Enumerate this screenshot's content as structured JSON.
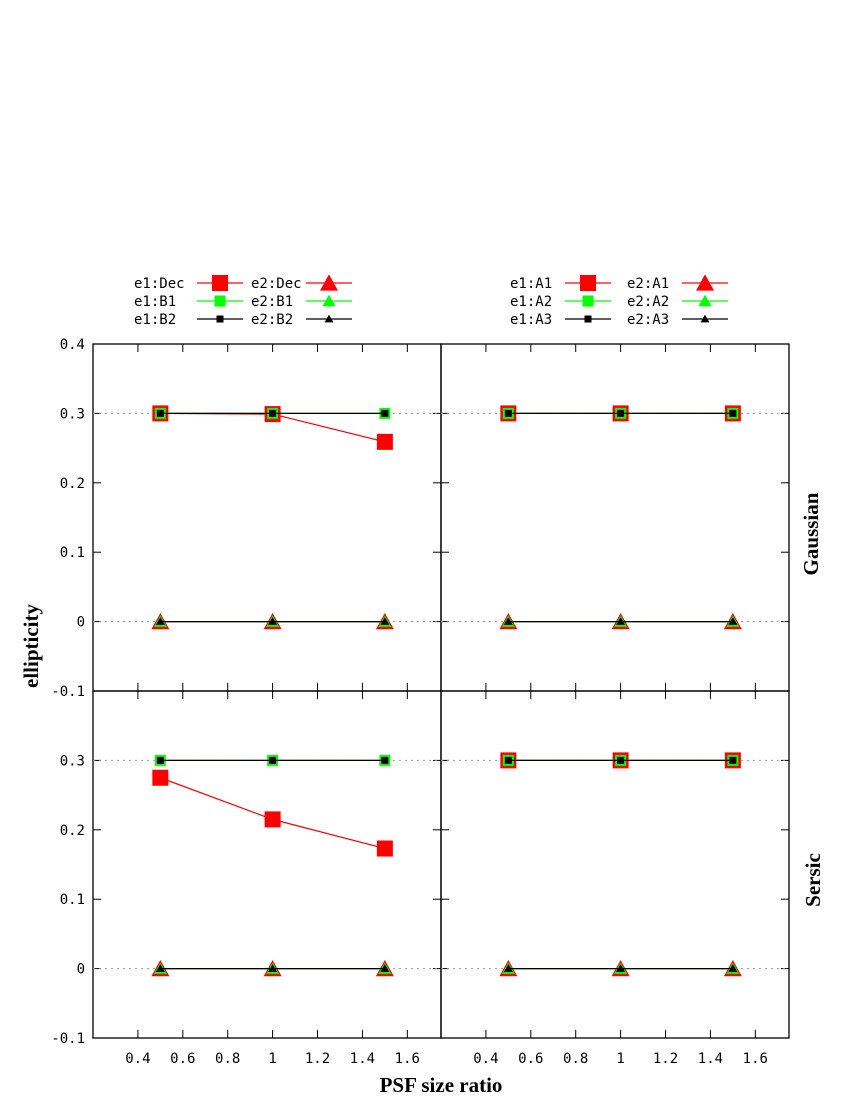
{
  "chart_data": {
    "type": "line",
    "xlabel": "PSF size ratio",
    "ylabel": "ellipticity",
    "xlim": [
      0.2,
      1.75
    ],
    "ylim": [
      -0.1,
      0.4
    ],
    "x_ticks": [
      "0.4",
      "0.6",
      "0.8",
      "1",
      "1.2",
      "1.4",
      "1.6"
    ],
    "y_ticks_top": [
      "-0.1",
      "0",
      "0.1",
      "0.2",
      "0.3",
      "0.4"
    ],
    "y_ticks_bottom": [
      "-0.1",
      "0",
      "0.1",
      "0.2",
      "0.3"
    ],
    "row_labels": [
      "Gaussian",
      "Sersic"
    ],
    "reference_lines": [
      0,
      0.3
    ],
    "grid": false,
    "panels": [
      {
        "row": "Gaussian",
        "column": "left",
        "x": [
          0.5,
          1.0,
          1.5
        ],
        "series": [
          {
            "name": "e1:Dec",
            "values": [
              0.3,
              0.299,
              0.259
            ]
          },
          {
            "name": "e1:B1",
            "values": [
              0.3,
              0.3,
              0.3
            ]
          },
          {
            "name": "e1:B2",
            "values": [
              0.3,
              0.3,
              0.3
            ]
          },
          {
            "name": "e2:Dec",
            "values": [
              0,
              0,
              0
            ]
          },
          {
            "name": "e2:B1",
            "values": [
              0,
              0,
              0
            ]
          },
          {
            "name": "e2:B2",
            "values": [
              0,
              0,
              0
            ]
          }
        ]
      },
      {
        "row": "Gaussian",
        "column": "right",
        "x": [
          0.5,
          1.0,
          1.5
        ],
        "series": [
          {
            "name": "e1:A1",
            "values": [
              0.3,
              0.3,
              0.3
            ]
          },
          {
            "name": "e1:A2",
            "values": [
              0.3,
              0.3,
              0.3
            ]
          },
          {
            "name": "e1:A3",
            "values": [
              0.3,
              0.3,
              0.3
            ]
          },
          {
            "name": "e2:A1",
            "values": [
              0,
              0,
              0
            ]
          },
          {
            "name": "e2:A2",
            "values": [
              0,
              0,
              0
            ]
          },
          {
            "name": "e2:A3",
            "values": [
              0,
              0,
              0
            ]
          }
        ]
      },
      {
        "row": "Sersic",
        "column": "left",
        "x": [
          0.5,
          1.0,
          1.5
        ],
        "series": [
          {
            "name": "e1:Dec",
            "values": [
              0.275,
              0.215,
              0.173
            ]
          },
          {
            "name": "e1:B1",
            "values": [
              0.3,
              0.3,
              0.3
            ]
          },
          {
            "name": "e1:B2",
            "values": [
              0.3,
              0.3,
              0.3
            ]
          },
          {
            "name": "e2:Dec",
            "values": [
              0,
              0,
              0
            ]
          },
          {
            "name": "e2:B1",
            "values": [
              0,
              0,
              0
            ]
          },
          {
            "name": "e2:B2",
            "values": [
              0,
              0,
              0
            ]
          }
        ]
      },
      {
        "row": "Sersic",
        "column": "right",
        "x": [
          0.5,
          1.0,
          1.5
        ],
        "series": [
          {
            "name": "e1:A1",
            "values": [
              0.3,
              0.3,
              0.3
            ]
          },
          {
            "name": "e1:A2",
            "values": [
              0.3,
              0.3,
              0.3
            ]
          },
          {
            "name": "e1:A3",
            "values": [
              0.3,
              0.3,
              0.3
            ]
          },
          {
            "name": "e2:A1",
            "values": [
              0,
              0,
              0
            ]
          },
          {
            "name": "e2:A2",
            "values": [
              0,
              0,
              0
            ]
          },
          {
            "name": "e2:A3",
            "values": [
              0,
              0,
              0
            ]
          }
        ]
      }
    ],
    "legends": [
      {
        "column": "left",
        "entries": [
          {
            "name": "e1:Dec",
            "marker": "square",
            "size": "large",
            "color": "#ff0000"
          },
          {
            "name": "e1:B1",
            "marker": "square",
            "size": "medium",
            "color": "#00ff00"
          },
          {
            "name": "e1:B2",
            "marker": "square",
            "size": "small",
            "color": "#000000"
          },
          {
            "name": "e2:Dec",
            "marker": "triangle",
            "size": "large",
            "color": "#ff0000"
          },
          {
            "name": "e2:B1",
            "marker": "triangle",
            "size": "medium",
            "color": "#00ff00"
          },
          {
            "name": "e2:B2",
            "marker": "triangle",
            "size": "small",
            "color": "#000000"
          }
        ]
      },
      {
        "column": "right",
        "entries": [
          {
            "name": "e1:A1",
            "marker": "square",
            "size": "large",
            "color": "#ff0000"
          },
          {
            "name": "e1:A2",
            "marker": "square",
            "size": "medium",
            "color": "#00ff00"
          },
          {
            "name": "e1:A3",
            "marker": "square",
            "size": "small",
            "color": "#000000"
          },
          {
            "name": "e2:A1",
            "marker": "triangle",
            "size": "large",
            "color": "#ff0000"
          },
          {
            "name": "e2:A2",
            "marker": "triangle",
            "size": "medium",
            "color": "#00ff00"
          },
          {
            "name": "e2:A3",
            "marker": "triangle",
            "size": "small",
            "color": "#000000"
          }
        ]
      }
    ]
  }
}
